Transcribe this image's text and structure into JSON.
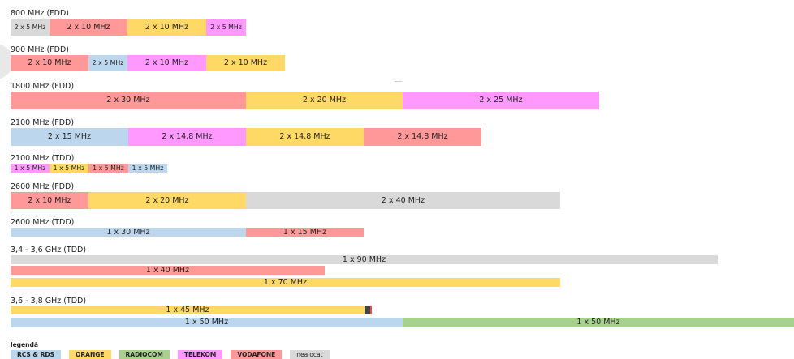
{
  "bands": [
    {
      "title": "800 MHz (FDD)",
      "segments": [
        "2 x 5 MHz",
        "2 x 10 MHz",
        "2 x 10 MHz",
        "2 x 5 MHz"
      ]
    },
    {
      "title": "900 MHz (FDD)",
      "segments": [
        "2 x 10 MHz",
        "2 x 5 MHz",
        "2 x 10 MHz",
        "2 x 10 MHz"
      ]
    },
    {
      "title": "1800 MHz (FDD)",
      "segments": [
        "2 x 30 MHz",
        "2 x 20 MHz",
        "2 x 25 MHz"
      ]
    },
    {
      "title": "2100 MHz (FDD)",
      "segments": [
        "2 x 15 MHz",
        "2 x 14,8 MHz",
        "2 x 14,8 MHz",
        "2 x 14,8 MHz"
      ]
    },
    {
      "title": "2100 MHz (TDD)",
      "segments": [
        "1 x 5 MHz",
        "1 x 5 MHz",
        "1 x 5 MHz",
        "1 x 5 MHz"
      ]
    },
    {
      "title": "2600 MHz (FDD)",
      "segments": [
        "2 x 10 MHz",
        "2 x 20 MHz",
        "2 x 40 MHz"
      ]
    },
    {
      "title": "2600 MHz (TDD)",
      "segments": [
        "1 x 30 MHz",
        "1 x 15 MHz"
      ]
    },
    {
      "title": "3,4 - 3,6 GHz (TDD)",
      "segments": [
        "1 x 90 MHz",
        "1 x 40 MHz",
        "1 x 70 MHz"
      ]
    },
    {
      "title": "3,6 - 3,8 GHz (TDD)",
      "segments": [
        "1 x 45 MHz",
        "1 x 50 MHz",
        "1 x 50 MHz"
      ]
    }
  ],
  "legend": {
    "title": "legendă",
    "items": [
      "RCS & RDS",
      "ORANGE",
      "RADIOCOM",
      "TELEKOM",
      "VODAFONE",
      "nealocat"
    ]
  },
  "colors": {
    "rcs_rds": "#bcd6ee",
    "orange": "#ffd966",
    "radiocom": "#a9d18e",
    "telekom": "#ff99ff",
    "vodafone": "#ff9999",
    "nealocat": "#d9d9d9"
  }
}
